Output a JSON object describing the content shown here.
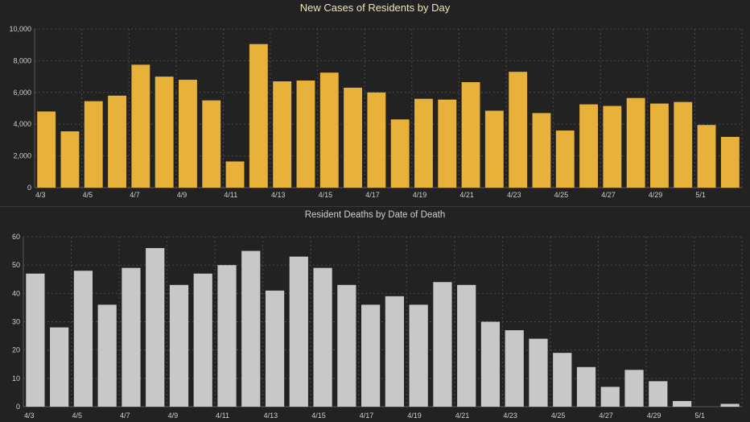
{
  "charts": [
    {
      "id": "cases",
      "type": "bar",
      "title": "New Cases of Residents by Day",
      "bar_color": "#e8b13a",
      "ylim": [
        0,
        10000
      ],
      "yticks": [
        0,
        2000,
        4000,
        6000,
        8000,
        10000
      ],
      "ytick_labels": [
        "0",
        "2,000",
        "4,000",
        "6,000",
        "8,000",
        "10,000"
      ],
      "categories": [
        "4/3",
        "4/4",
        "4/5",
        "4/6",
        "4/7",
        "4/8",
        "4/9",
        "4/10",
        "4/11",
        "4/12",
        "4/13",
        "4/14",
        "4/15",
        "4/16",
        "4/17",
        "4/18",
        "4/19",
        "4/20",
        "4/21",
        "4/22",
        "4/23",
        "4/24",
        "4/25",
        "4/26",
        "4/27",
        "4/28",
        "4/29",
        "4/30",
        "5/1",
        "5/2"
      ],
      "xtick_labels": [
        "4/3",
        "",
        "4/5",
        "",
        "4/7",
        "",
        "4/9",
        "",
        "4/11",
        "",
        "4/13",
        "",
        "4/15",
        "",
        "4/17",
        "",
        "4/19",
        "",
        "4/21",
        "",
        "4/23",
        "",
        "4/25",
        "",
        "4/27",
        "",
        "4/29",
        "",
        "5/1",
        ""
      ],
      "values": [
        4800,
        3550,
        5450,
        5800,
        7750,
        7000,
        6800,
        5500,
        1650,
        9050,
        6700,
        6750,
        7250,
        6300,
        6000,
        4300,
        5600,
        5550,
        6650,
        4850,
        7300,
        4700,
        3600,
        5250,
        5150,
        5650,
        5300,
        5400,
        3950,
        3200
      ]
    },
    {
      "id": "deaths",
      "type": "bar",
      "title": "Resident Deaths by Date of Death",
      "bar_color": "#c8c8c8",
      "ylim": [
        0,
        60
      ],
      "yticks": [
        0,
        10,
        20,
        30,
        40,
        50,
        60
      ],
      "ytick_labels": [
        "0",
        "10",
        "20",
        "30",
        "40",
        "50",
        "60"
      ],
      "categories": [
        "4/3",
        "4/4",
        "4/5",
        "4/6",
        "4/7",
        "4/8",
        "4/9",
        "4/10",
        "4/11",
        "4/12",
        "4/13",
        "4/14",
        "4/15",
        "4/16",
        "4/17",
        "4/18",
        "4/19",
        "4/20",
        "4/21",
        "4/22",
        "4/23",
        "4/24",
        "4/25",
        "4/26",
        "4/27",
        "4/28",
        "4/29",
        "4/30",
        "5/1",
        "5/2"
      ],
      "xtick_labels": [
        "4/3",
        "",
        "4/5",
        "",
        "4/7",
        "",
        "4/9",
        "",
        "4/11",
        "",
        "4/13",
        "",
        "4/15",
        "",
        "4/17",
        "",
        "4/19",
        "",
        "4/21",
        "",
        "4/23",
        "",
        "4/25",
        "",
        "4/27",
        "",
        "4/29",
        "",
        "5/1",
        ""
      ],
      "values": [
        47,
        28,
        48,
        36,
        49,
        56,
        43,
        47,
        50,
        55,
        41,
        53,
        49,
        43,
        36,
        39,
        36,
        44,
        43,
        30,
        27,
        24,
        19,
        14,
        7,
        13,
        9,
        2,
        0,
        1
      ]
    }
  ]
}
